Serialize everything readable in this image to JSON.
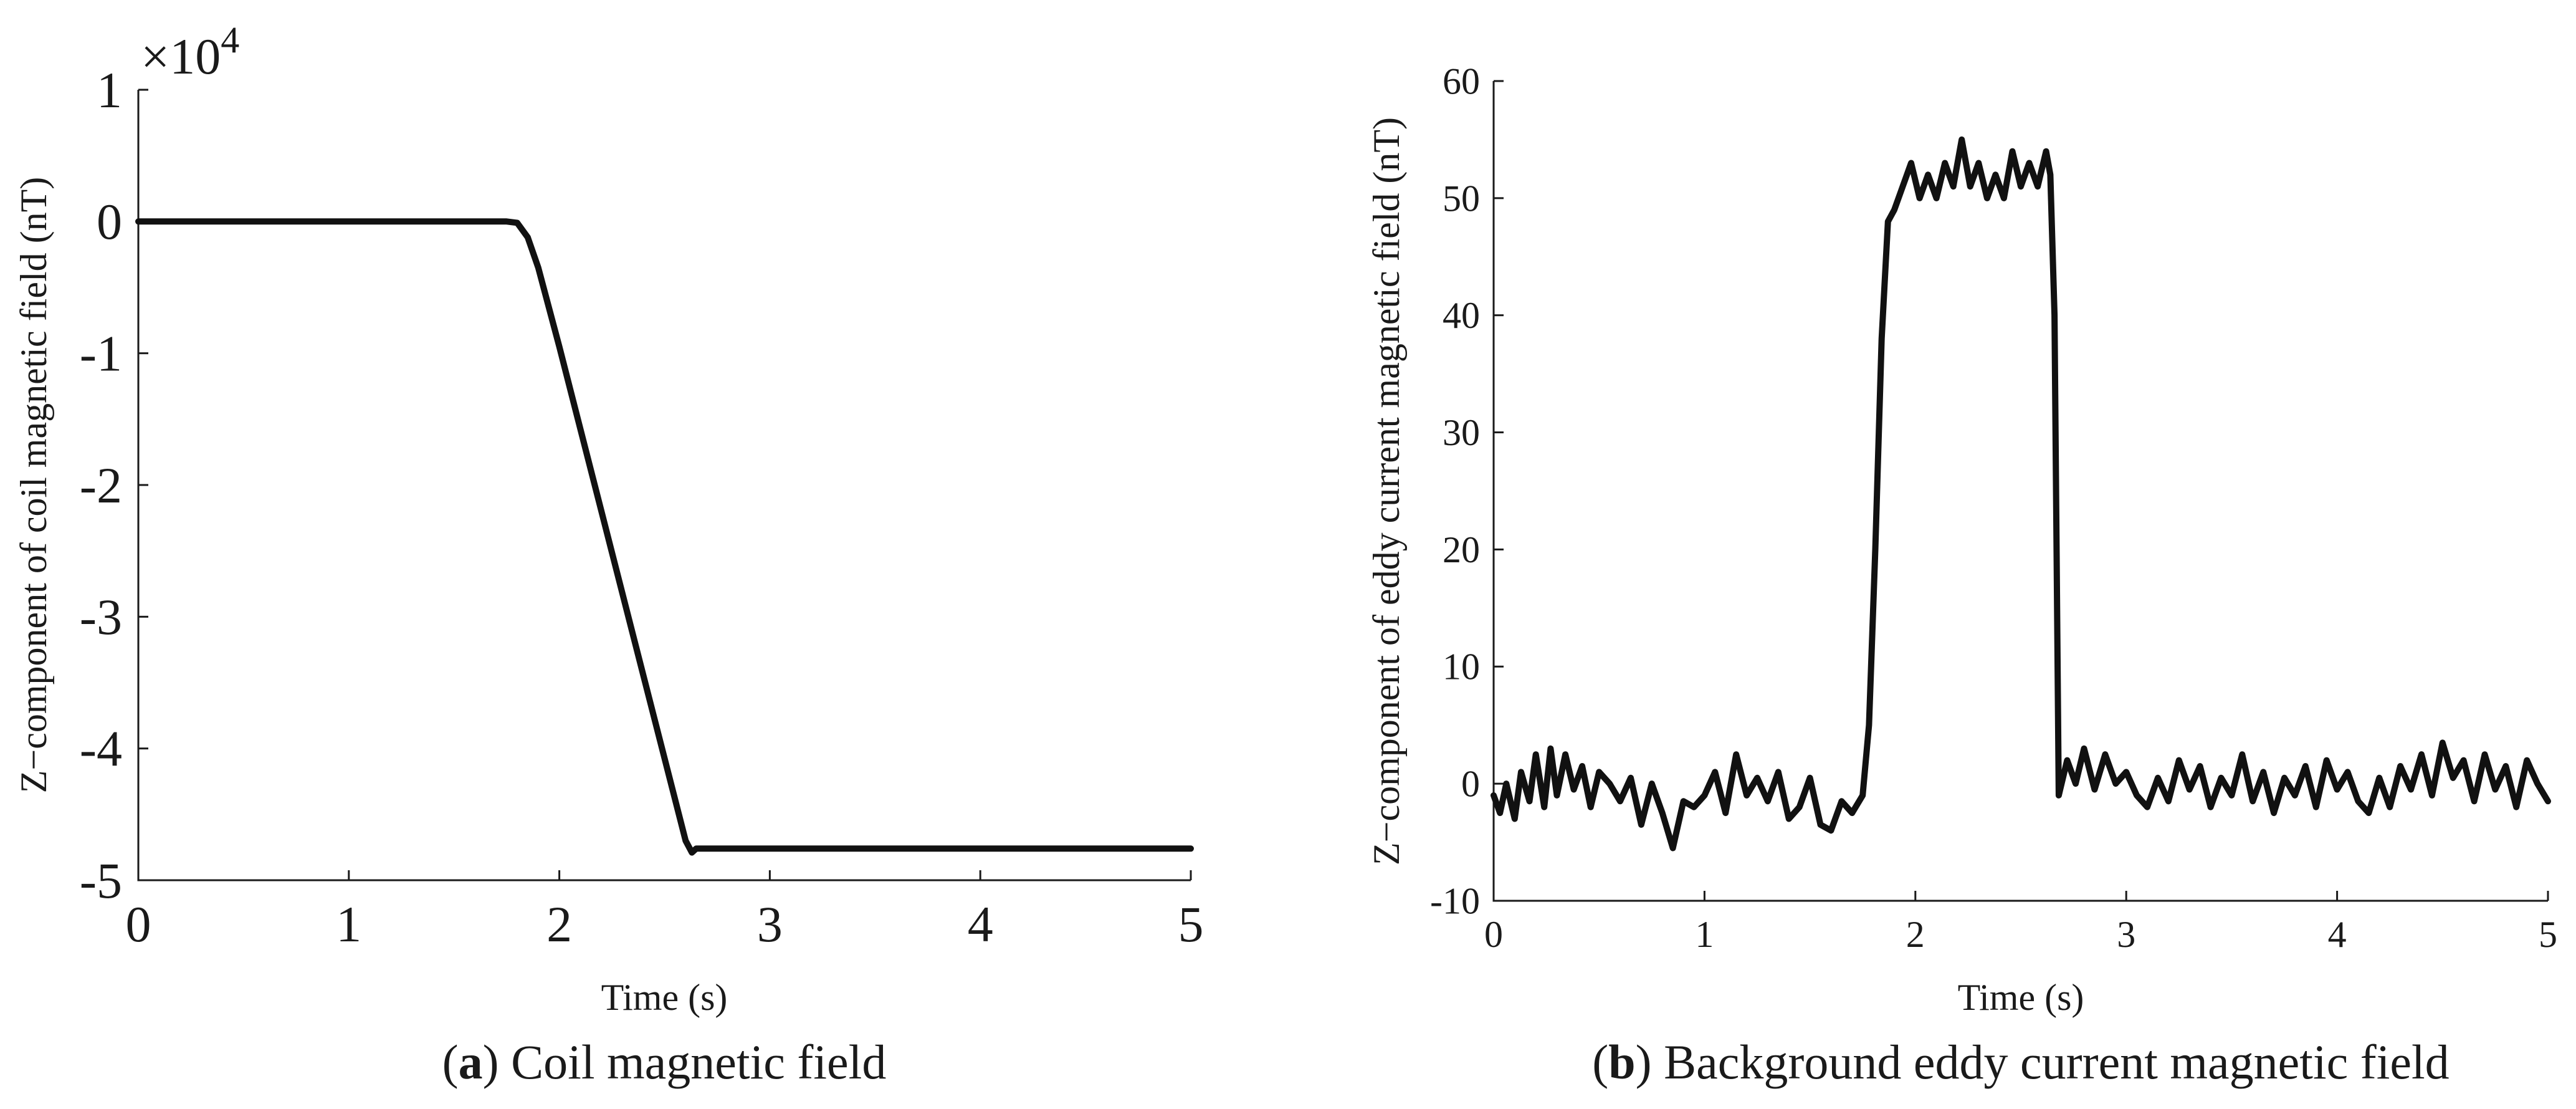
{
  "chart_data": [
    {
      "type": "line",
      "title": "",
      "xlabel": "Time (s)",
      "ylabel": "Z−component of coil magnetic field (nT)",
      "y_exponent_label": "×10",
      "y_exponent_power": "4",
      "xlim": [
        0,
        5
      ],
      "ylim": [
        -5,
        1
      ],
      "xticks": [
        "0",
        "1",
        "2",
        "3",
        "4",
        "5"
      ],
      "yticks": [
        "1",
        "0",
        "-1",
        "-2",
        "-3",
        "-4",
        "-5"
      ],
      "grid": false,
      "line_color": "#111111",
      "series": [
        {
          "x": [
            0,
            0.5,
            1.0,
            1.5,
            1.75,
            1.8,
            1.85,
            1.9,
            2.0,
            2.2,
            2.4,
            2.6,
            2.63,
            2.65,
            2.7,
            3.0,
            3.5,
            4.0,
            4.5,
            5.0
          ],
          "values": [
            0,
            0,
            0,
            0,
            0,
            -0.01,
            -0.12,
            -0.35,
            -0.95,
            -2.2,
            -3.45,
            -4.7,
            -4.79,
            -4.76,
            -4.76,
            -4.76,
            -4.76,
            -4.76,
            -4.76,
            -4.76
          ]
        }
      ],
      "caption_tag": "a",
      "caption_text": "Coil magnetic field"
    },
    {
      "type": "line",
      "title": "",
      "xlabel": "Time (s)",
      "ylabel": "Z−component of eddy current magnetic field (nT)",
      "xlim": [
        0,
        5
      ],
      "ylim": [
        -10,
        60
      ],
      "xticks": [
        "0",
        "1",
        "2",
        "3",
        "4",
        "5"
      ],
      "yticks": [
        "60",
        "50",
        "40",
        "30",
        "20",
        "10",
        "0",
        "-10"
      ],
      "grid": false,
      "line_color": "#111111",
      "series": [
        {
          "x": [
            0,
            0.03,
            0.06,
            0.1,
            0.13,
            0.17,
            0.2,
            0.24,
            0.27,
            0.3,
            0.34,
            0.38,
            0.42,
            0.46,
            0.5,
            0.55,
            0.6,
            0.65,
            0.7,
            0.75,
            0.8,
            0.85,
            0.9,
            0.95,
            1.0,
            1.05,
            1.1,
            1.15,
            1.2,
            1.25,
            1.3,
            1.35,
            1.4,
            1.45,
            1.5,
            1.55,
            1.6,
            1.65,
            1.7,
            1.75,
            1.78,
            1.81,
            1.84,
            1.87,
            1.9,
            1.94,
            1.98,
            2.02,
            2.06,
            2.1,
            2.14,
            2.18,
            2.22,
            2.26,
            2.3,
            2.34,
            2.38,
            2.42,
            2.46,
            2.5,
            2.54,
            2.58,
            2.62,
            2.64,
            2.66,
            2.68,
            2.72,
            2.76,
            2.8,
            2.85,
            2.9,
            2.95,
            3.0,
            3.05,
            3.1,
            3.15,
            3.2,
            3.25,
            3.3,
            3.35,
            3.4,
            3.45,
            3.5,
            3.55,
            3.6,
            3.65,
            3.7,
            3.75,
            3.8,
            3.85,
            3.9,
            3.95,
            4.0,
            4.05,
            4.1,
            4.15,
            4.2,
            4.25,
            4.3,
            4.35,
            4.4,
            4.45,
            4.5,
            4.55,
            4.6,
            4.65,
            4.7,
            4.75,
            4.8,
            4.85,
            4.9,
            4.95,
            5.0
          ],
          "values": [
            -1,
            -2.5,
            0,
            -3,
            1,
            -1.5,
            2.5,
            -2,
            3,
            -1,
            2.5,
            -0.5,
            1.5,
            -2,
            1,
            0,
            -1.5,
            0.5,
            -3.5,
            0,
            -2.5,
            -5.5,
            -1.5,
            -2,
            -1,
            1,
            -2.5,
            2.5,
            -1,
            0.5,
            -1.5,
            1,
            -3,
            -2,
            0.5,
            -3.5,
            -4,
            -1.5,
            -2.5,
            -1,
            5,
            20,
            38,
            48,
            49,
            51,
            53,
            50,
            52,
            50,
            53,
            51,
            55,
            51,
            53,
            50,
            52,
            50,
            54,
            51,
            53,
            51,
            54,
            52,
            40,
            -1,
            2,
            0,
            3,
            -0.5,
            2.5,
            0,
            1,
            -1,
            -2,
            0.5,
            -1.5,
            2,
            -0.5,
            1.5,
            -2,
            0.5,
            -1,
            2.5,
            -1.5,
            1,
            -2.5,
            0.5,
            -1,
            1.5,
            -2,
            2,
            -0.5,
            1,
            -1.5,
            -2.5,
            0.5,
            -2,
            1.5,
            -0.5,
            2.5,
            -1,
            3.5,
            0.5,
            2,
            -1.5,
            2.5,
            -0.5,
            1.5,
            -2,
            2,
            0,
            -1.5
          ]
        }
      ],
      "caption_tag": "b",
      "caption_text": "Background eddy current magnetic field"
    }
  ]
}
